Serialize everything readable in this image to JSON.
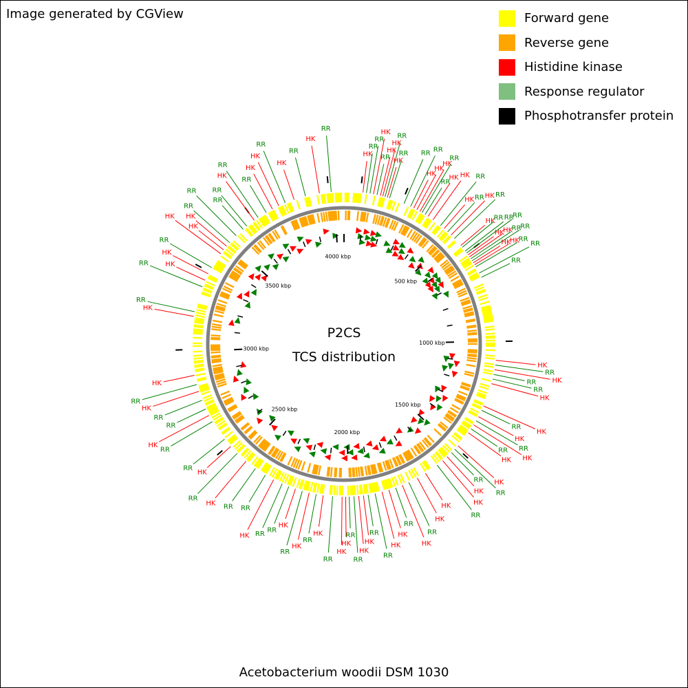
{
  "credit": "Image generated by CGView",
  "legend": [
    {
      "label": "Forward gene",
      "color": "#ffff00"
    },
    {
      "label": "Reverse gene",
      "color": "#ffa500"
    },
    {
      "label": "Histidine kinase",
      "color": "#ff0000"
    },
    {
      "label": "Response regulator",
      "color": "#7fbf7f"
    },
    {
      "label": "Phosphotransfer protein",
      "color": "#000000"
    }
  ],
  "map": {
    "title": "P2CS",
    "subtitle": "TCS distribution",
    "genome_length_kbp": 4044,
    "tick_labels": [
      "4000 kbp",
      "500 kbp",
      "1000 kbp",
      "1500 kbp",
      "2000 kbp",
      "2500 kbp",
      "3000 kbp",
      "3500 kbp"
    ],
    "tick_values_kbp": [
      4000,
      500,
      1000,
      1500,
      2000,
      2500,
      3000,
      3500
    ],
    "backbone_color": "#808080",
    "hk_color": "#ff0000",
    "rr_color": "#008000",
    "callouts": [
      {
        "pos": 80,
        "label": "HK",
        "type": "HK"
      },
      {
        "pos": 95,
        "label": "RR",
        "type": "RR"
      },
      {
        "pos": 110,
        "label": "RR",
        "type": "RR"
      },
      {
        "pos": 125,
        "label": "HK",
        "type": "HK"
      },
      {
        "pos": 140,
        "label": "RR",
        "type": "RR"
      },
      {
        "pos": 155,
        "label": "HK",
        "type": "HK"
      },
      {
        "pos": 165,
        "label": "HK",
        "type": "HK"
      },
      {
        "pos": 175,
        "label": "RR",
        "type": "RR"
      },
      {
        "pos": 185,
        "label": "HK",
        "type": "HK"
      },
      {
        "pos": 195,
        "label": "RR",
        "type": "RR"
      },
      {
        "pos": 260,
        "label": "RR",
        "type": "RR"
      },
      {
        "pos": 290,
        "label": "RR",
        "type": "RR"
      },
      {
        "pos": 305,
        "label": "HK",
        "type": "HK"
      },
      {
        "pos": 320,
        "label": "HK",
        "type": "HK"
      },
      {
        "pos": 335,
        "label": "HK",
        "type": "HK"
      },
      {
        "pos": 345,
        "label": "RR",
        "type": "RR"
      },
      {
        "pos": 360,
        "label": "RR",
        "type": "RR"
      },
      {
        "pos": 375,
        "label": "HK",
        "type": "HK"
      },
      {
        "pos": 400,
        "label": "HK",
        "type": "HK"
      },
      {
        "pos": 440,
        "label": "RR",
        "type": "RR"
      },
      {
        "pos": 460,
        "label": "HK",
        "type": "HK"
      },
      {
        "pos": 480,
        "label": "RR",
        "type": "RR"
      },
      {
        "pos": 500,
        "label": "HK",
        "type": "HK"
      },
      {
        "pos": 520,
        "label": "RR",
        "type": "RR"
      },
      {
        "pos": 560,
        "label": "HK",
        "type": "HK"
      },
      {
        "pos": 570,
        "label": "RR",
        "type": "RR"
      },
      {
        "pos": 590,
        "label": "RR",
        "type": "RR"
      },
      {
        "pos": 600,
        "label": "RR",
        "type": "RR"
      },
      {
        "pos": 610,
        "label": "HK",
        "type": "HK"
      },
      {
        "pos": 620,
        "label": "HK",
        "type": "HK"
      },
      {
        "pos": 630,
        "label": "RR",
        "type": "RR"
      },
      {
        "pos": 640,
        "label": "RR",
        "type": "RR"
      },
      {
        "pos": 650,
        "label": "HK",
        "type": "HK"
      },
      {
        "pos": 660,
        "label": "HK",
        "type": "HK"
      },
      {
        "pos": 670,
        "label": "RR",
        "type": "RR"
      },
      {
        "pos": 700,
        "label": "RR",
        "type": "RR"
      },
      {
        "pos": 720,
        "label": "RR",
        "type": "RR"
      },
      {
        "pos": 1080,
        "label": "HK",
        "type": "HK"
      },
      {
        "pos": 1100,
        "label": "RR",
        "type": "RR"
      },
      {
        "pos": 1120,
        "label": "HK",
        "type": "HK"
      },
      {
        "pos": 1140,
        "label": "RR",
        "type": "RR"
      },
      {
        "pos": 1160,
        "label": "RR",
        "type": "RR"
      },
      {
        "pos": 1180,
        "label": "HK",
        "type": "HK"
      },
      {
        "pos": 1280,
        "label": "HK",
        "type": "HK"
      },
      {
        "pos": 1300,
        "label": "RR",
        "type": "RR"
      },
      {
        "pos": 1330,
        "label": "HK",
        "type": "HK"
      },
      {
        "pos": 1350,
        "label": "RR",
        "type": "RR"
      },
      {
        "pos": 1370,
        "label": "HK",
        "type": "HK"
      },
      {
        "pos": 1390,
        "label": "RR",
        "type": "RR"
      },
      {
        "pos": 1410,
        "label": "HK",
        "type": "HK"
      },
      {
        "pos": 1480,
        "label": "HK",
        "type": "HK"
      },
      {
        "pos": 1500,
        "label": "RR",
        "type": "RR"
      },
      {
        "pos": 1520,
        "label": "RR",
        "type": "RR"
      },
      {
        "pos": 1545,
        "label": "HK",
        "type": "HK"
      },
      {
        "pos": 1570,
        "label": "HK",
        "type": "HK"
      },
      {
        "pos": 1600,
        "label": "RR",
        "type": "RR"
      },
      {
        "pos": 1660,
        "label": "HK",
        "type": "HK"
      },
      {
        "pos": 1700,
        "label": "HK",
        "type": "HK"
      },
      {
        "pos": 1740,
        "label": "RR",
        "type": "RR"
      },
      {
        "pos": 1770,
        "label": "HK",
        "type": "HK"
      },
      {
        "pos": 1800,
        "label": "RR",
        "type": "RR"
      },
      {
        "pos": 1830,
        "label": "HK",
        "type": "HK"
      },
      {
        "pos": 1860,
        "label": "HK",
        "type": "HK"
      },
      {
        "pos": 1890,
        "label": "RR",
        "type": "RR"
      },
      {
        "pos": 1920,
        "label": "RR",
        "type": "RR"
      },
      {
        "pos": 1940,
        "label": "HK",
        "type": "HK"
      },
      {
        "pos": 1960,
        "label": "HK",
        "type": "HK"
      },
      {
        "pos": 1980,
        "label": "RR",
        "type": "RR"
      },
      {
        "pos": 2000,
        "label": "RR",
        "type": "RR"
      },
      {
        "pos": 2015,
        "label": "HK",
        "type": "HK"
      },
      {
        "pos": 2030,
        "label": "HK",
        "type": "HK"
      },
      {
        "pos": 2070,
        "label": "RR",
        "type": "RR"
      },
      {
        "pos": 2110,
        "label": "HK",
        "type": "HK"
      },
      {
        "pos": 2140,
        "label": "RR",
        "type": "RR"
      },
      {
        "pos": 2170,
        "label": "HK",
        "type": "HK"
      },
      {
        "pos": 2200,
        "label": "RR",
        "type": "RR"
      },
      {
        "pos": 2230,
        "label": "HK",
        "type": "HK"
      },
      {
        "pos": 2260,
        "label": "RR",
        "type": "RR"
      },
      {
        "pos": 2290,
        "label": "RR",
        "type": "RR"
      },
      {
        "pos": 2330,
        "label": "HK",
        "type": "HK"
      },
      {
        "pos": 2370,
        "label": "RR",
        "type": "RR"
      },
      {
        "pos": 2420,
        "label": "RR",
        "type": "RR"
      },
      {
        "pos": 2470,
        "label": "HK",
        "type": "HK"
      },
      {
        "pos": 2520,
        "label": "RR",
        "type": "RR"
      },
      {
        "pos": 2560,
        "label": "HK",
        "type": "HK"
      },
      {
        "pos": 2600,
        "label": "RR",
        "type": "RR"
      },
      {
        "pos": 2690,
        "label": "RR",
        "type": "RR"
      },
      {
        "pos": 2720,
        "label": "HK",
        "type": "HK"
      },
      {
        "pos": 2750,
        "label": "RR",
        "type": "RR"
      },
      {
        "pos": 2790,
        "label": "RR",
        "type": "RR"
      },
      {
        "pos": 2830,
        "label": "HK",
        "type": "HK"
      },
      {
        "pos": 2860,
        "label": "RR",
        "type": "RR"
      },
      {
        "pos": 2900,
        "label": "HK",
        "type": "HK"
      },
      {
        "pos": 3150,
        "label": "HK",
        "type": "HK"
      },
      {
        "pos": 3170,
        "label": "RR",
        "type": "RR"
      },
      {
        "pos": 3280,
        "label": "RR",
        "type": "RR"
      },
      {
        "pos": 3310,
        "label": "HK",
        "type": "HK"
      },
      {
        "pos": 3340,
        "label": "HK",
        "type": "HK"
      },
      {
        "pos": 3370,
        "label": "RR",
        "type": "RR"
      },
      {
        "pos": 3440,
        "label": "HK",
        "type": "HK"
      },
      {
        "pos": 3460,
        "label": "HK",
        "type": "HK"
      },
      {
        "pos": 3480,
        "label": "HK",
        "type": "HK"
      },
      {
        "pos": 3500,
        "label": "RR",
        "type": "RR"
      },
      {
        "pos": 3540,
        "label": "RR",
        "type": "RR"
      },
      {
        "pos": 3580,
        "label": "RR",
        "type": "RR"
      },
      {
        "pos": 3600,
        "label": "RR",
        "type": "RR"
      },
      {
        "pos": 3640,
        "label": "HK",
        "type": "HK"
      },
      {
        "pos": 3660,
        "label": "RR",
        "type": "RR"
      },
      {
        "pos": 3700,
        "label": "RR",
        "type": "RR"
      },
      {
        "pos": 3730,
        "label": "HK",
        "type": "HK"
      },
      {
        "pos": 3760,
        "label": "HK",
        "type": "HK"
      },
      {
        "pos": 3790,
        "label": "RR",
        "type": "RR"
      },
      {
        "pos": 3830,
        "label": "HK",
        "type": "HK"
      },
      {
        "pos": 3880,
        "label": "RR",
        "type": "RR"
      },
      {
        "pos": 3940,
        "label": "HK",
        "type": "HK"
      },
      {
        "pos": 3990,
        "label": "RR",
        "type": "RR"
      }
    ]
  },
  "caption": "Acetobacterium woodii DSM 1030"
}
